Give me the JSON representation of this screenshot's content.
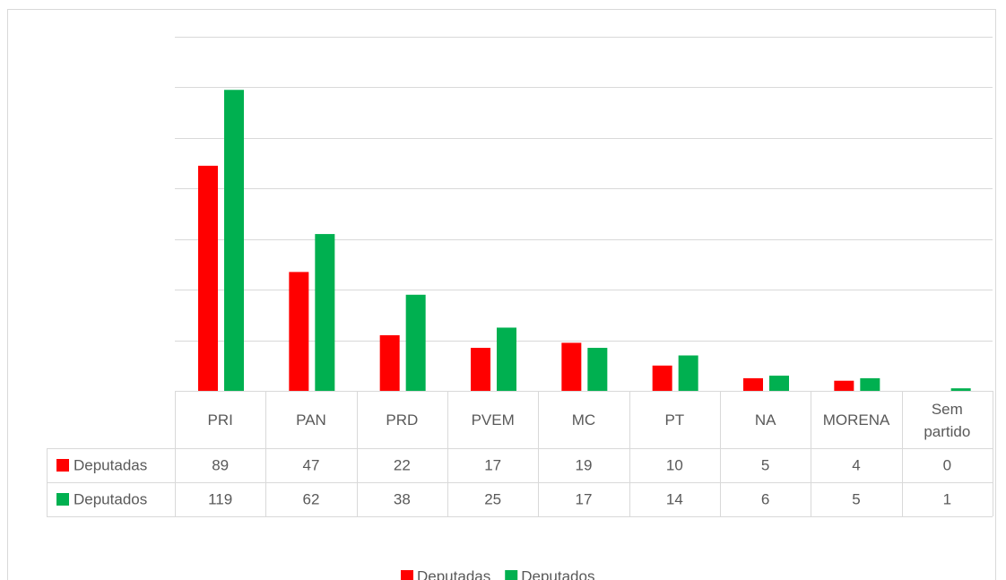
{
  "chart_data": {
    "type": "bar",
    "categories": [
      "PRI",
      "PAN",
      "PRD",
      "PVEM",
      "MC",
      "PT",
      "NA",
      "MORENA",
      "Sem partido"
    ],
    "series": [
      {
        "name": "Deputadas",
        "color": "#ff0000",
        "values": [
          89,
          47,
          22,
          17,
          19,
          10,
          5,
          4,
          0
        ]
      },
      {
        "name": "Deputados",
        "color": "#00b050",
        "values": [
          119,
          62,
          38,
          25,
          17,
          14,
          6,
          5,
          1
        ]
      }
    ],
    "ylim": [
      0,
      140
    ],
    "yticks": [
      0,
      20,
      40,
      60,
      80,
      100,
      120,
      140
    ],
    "grid": true,
    "legend": "bottom"
  }
}
